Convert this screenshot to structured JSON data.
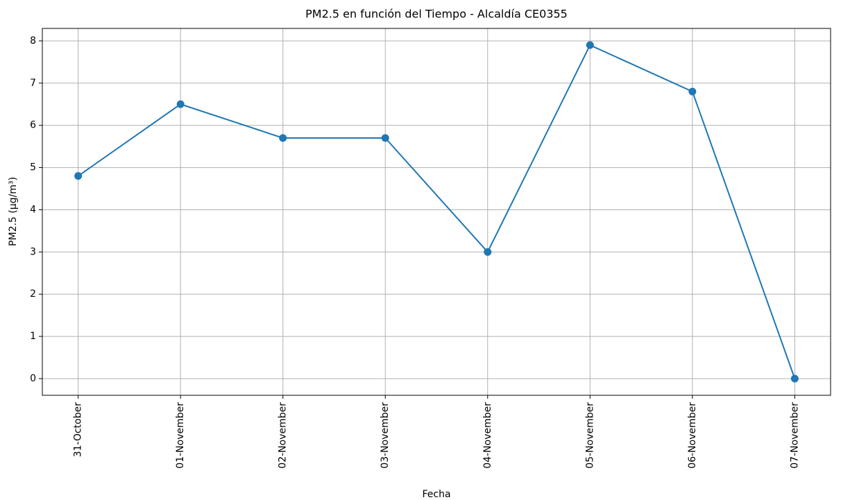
{
  "chart_data": {
    "type": "line",
    "title": "PM2.5 en función del Tiempo - Alcaldía CE0355",
    "xlabel": "Fecha",
    "ylabel": "PM2.5 (µg/m³)",
    "categories": [
      "31-October",
      "01-November",
      "02-November",
      "03-November",
      "04-November",
      "05-November",
      "06-November",
      "07-November"
    ],
    "series": [
      {
        "name": "PM2.5",
        "color": "#1f77b4",
        "values": [
          4.8,
          6.5,
          5.7,
          5.7,
          3.0,
          7.9,
          6.8,
          0.0
        ]
      }
    ],
    "ylim": [
      -0.395,
      8.295
    ],
    "yticks": [
      0,
      1,
      2,
      3,
      4,
      5,
      6,
      7,
      8
    ],
    "grid": true,
    "marker": "o"
  }
}
